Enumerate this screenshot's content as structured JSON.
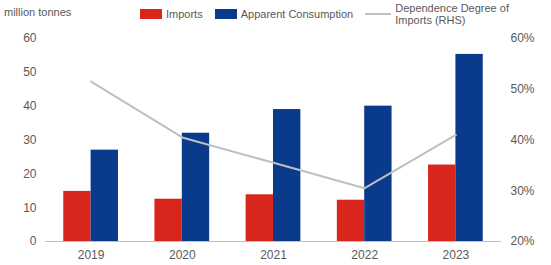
{
  "chart_data": {
    "type": "bar",
    "y_label": "million tonnes",
    "categories": [
      "2019",
      "2020",
      "2021",
      "2022",
      "2023"
    ],
    "series": [
      {
        "name": "Imports",
        "type": "bar",
        "color": "#d9261c",
        "values": [
          14.8,
          12.5,
          13.8,
          12.2,
          22.6
        ]
      },
      {
        "name": "Apparent Consumption",
        "type": "bar",
        "color": "#0a3a8c",
        "values": [
          27,
          32,
          39,
          40,
          55.3
        ]
      },
      {
        "name": "Dependence Degree of Imports (RHS)",
        "type": "line",
        "axis": "y2",
        "color": "#bfbfbf",
        "values": [
          51.5,
          40.5,
          35.5,
          30.5,
          41
        ]
      }
    ],
    "ylim": [
      0,
      60
    ],
    "yticks": [
      0,
      10,
      20,
      30,
      40,
      50,
      60
    ],
    "y2lim": [
      20,
      60
    ],
    "y2ticks": [
      {
        "value": 20,
        "label": "20%"
      },
      {
        "value": 30,
        "label": "30%"
      },
      {
        "value": 40,
        "label": "40%"
      },
      {
        "value": 50,
        "label": "50%"
      },
      {
        "value": 60,
        "label": "60%"
      }
    ],
    "grid": false,
    "legend": "top"
  }
}
